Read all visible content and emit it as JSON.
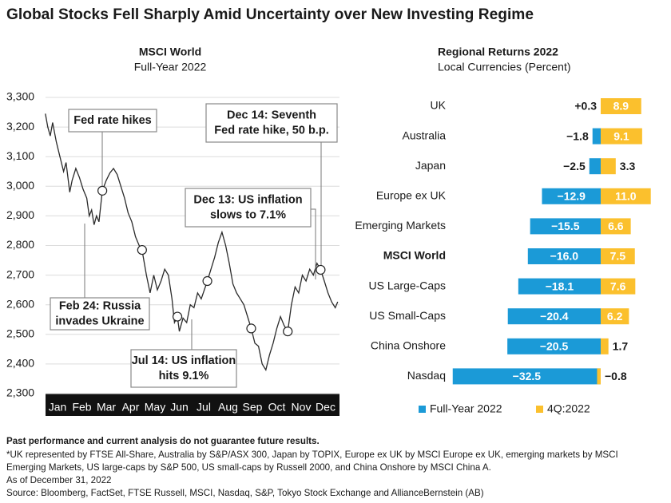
{
  "title": "Global Stocks Fell Sharply Amid Uncertainty over New Investing Regime",
  "chart_data": [
    {
      "type": "line",
      "title": "MSCI World",
      "subtitle": "Full-Year 2022",
      "xlim": [
        0,
        12
      ],
      "xticks": [
        {
          "value": 0.5,
          "label": "Jan"
        },
        {
          "value": 1.5,
          "label": "Feb"
        },
        {
          "value": 2.5,
          "label": "Mar"
        },
        {
          "value": 3.5,
          "label": "Apr"
        },
        {
          "value": 4.5,
          "label": "May"
        },
        {
          "value": 5.5,
          "label": "Jun"
        },
        {
          "value": 6.5,
          "label": "Jul"
        },
        {
          "value": 7.5,
          "label": "Aug"
        },
        {
          "value": 8.5,
          "label": "Sep"
        },
        {
          "value": 9.5,
          "label": "Oct"
        },
        {
          "value": 10.5,
          "label": "Nov"
        },
        {
          "value": 11.5,
          "label": "Dec"
        }
      ],
      "ylim": [
        2300,
        3300
      ],
      "yticks": [
        {
          "value": 2300,
          "label": "2,300"
        },
        {
          "value": 2400,
          "label": "2,400"
        },
        {
          "value": 2500,
          "label": "2,500"
        },
        {
          "value": 2600,
          "label": "2,600"
        },
        {
          "value": 2700,
          "label": "2,700"
        },
        {
          "value": 2800,
          "label": "2,800"
        },
        {
          "value": 2900,
          "label": "2,900"
        },
        {
          "value": 3000,
          "label": "3,000"
        },
        {
          "value": 3100,
          "label": "3,100"
        },
        {
          "value": 3200,
          "label": "3,200"
        },
        {
          "value": 3300,
          "label": "3,300"
        }
      ],
      "grid": true,
      "series": [
        {
          "color": "#2b2b2b",
          "x": [
            0.0,
            0.1,
            0.2,
            0.3,
            0.45,
            0.6,
            0.75,
            0.85,
            1.0,
            1.1,
            1.25,
            1.4,
            1.55,
            1.7,
            1.8,
            1.9,
            2.0,
            2.1,
            2.2,
            2.34,
            2.5,
            2.65,
            2.8,
            2.95,
            3.1,
            3.25,
            3.4,
            3.55,
            3.7,
            3.85,
            3.97,
            4.15,
            4.3,
            4.45,
            4.6,
            4.75,
            4.9,
            5.05,
            5.2,
            5.3,
            5.42,
            5.5,
            5.65,
            5.8,
            5.95,
            6.1,
            6.25,
            6.4,
            6.65,
            6.8,
            6.95,
            7.1,
            7.25,
            7.4,
            7.55,
            7.7,
            7.85,
            8.0,
            8.15,
            8.3,
            8.45,
            8.6,
            8.75,
            8.9,
            9.05,
            9.2,
            9.35,
            9.5,
            9.65,
            9.8,
            9.95,
            10.1,
            10.25,
            10.4,
            10.55,
            10.7,
            10.85,
            11.0,
            11.15,
            11.3,
            11.45,
            11.6,
            11.75,
            11.9,
            12.0
          ],
          "values": [
            3245,
            3200,
            3170,
            3215,
            3150,
            3100,
            3050,
            3080,
            2980,
            3020,
            3060,
            3030,
            2990,
            2960,
            2900,
            2920,
            2870,
            2900,
            2880,
            2985,
            3020,
            3045,
            3060,
            3040,
            3000,
            2960,
            2910,
            2880,
            2830,
            2800,
            2785,
            2700,
            2640,
            2700,
            2650,
            2680,
            2720,
            2700,
            2620,
            2540,
            2560,
            2510,
            2555,
            2540,
            2600,
            2590,
            2640,
            2620,
            2680,
            2720,
            2760,
            2810,
            2845,
            2800,
            2740,
            2670,
            2640,
            2620,
            2600,
            2560,
            2520,
            2470,
            2460,
            2400,
            2380,
            2430,
            2470,
            2520,
            2560,
            2530,
            2510,
            2600,
            2660,
            2640,
            2700,
            2680,
            2720,
            2700,
            2740,
            2718,
            2680,
            2640,
            2610,
            2590,
            2610
          ]
        }
      ],
      "markers": {
        "x": [
          2.34,
          3.97,
          5.42,
          6.65,
          8.45,
          9.95,
          11.3
        ],
        "values": [
          2985,
          2785,
          2560,
          2680,
          2520,
          2510,
          2718
        ]
      },
      "annotations": [
        [
          "Fed rate hikes"
        ],
        [
          "Dec 14: Seventh",
          "Fed rate hike, 50 b.p."
        ],
        [
          "Dec 13: US inflation",
          "slows to 7.1%"
        ],
        [
          "Feb 24: Russia",
          "invades Ukraine"
        ],
        [
          "Jul 14: US inflation",
          "hits 9.1%"
        ]
      ]
    },
    {
      "type": "hbar",
      "title": "Regional Returns 2022",
      "subtitle": "Local Currencies (Percent)",
      "categories": [
        "UK",
        "Australia",
        "Japan",
        "Europe ex UK",
        "Emerging Markets",
        "MSCI World",
        "US Large-Caps",
        "US Small-Caps",
        "China Onshore",
        "Nasdaq"
      ],
      "highlight_index": 5,
      "series": [
        {
          "name": "Full-Year 2022",
          "color": "#1b9ad7",
          "values": [
            0.3,
            -1.8,
            -2.5,
            -12.9,
            -15.5,
            -16.0,
            -18.1,
            -20.4,
            -20.5,
            -32.5
          ],
          "value_labels": [
            "+0.3",
            "−1.8",
            "−2.5",
            "−12.9",
            "−15.5",
            "−16.0",
            "−18.1",
            "−20.4",
            "−20.5",
            "−32.5"
          ]
        },
        {
          "name": "4Q:2022",
          "color": "#fbc02d",
          "values": [
            8.9,
            9.1,
            3.3,
            11.0,
            6.6,
            7.5,
            7.6,
            6.2,
            1.7,
            -0.8
          ],
          "value_labels": [
            "8.9",
            "9.1",
            "3.3",
            "11.0",
            "6.6",
            "7.5",
            "7.6",
            "6.2",
            "1.7",
            "−0.8"
          ]
        }
      ]
    }
  ],
  "footnotes": [
    "Past performance and current analysis do not guarantee future results.",
    "*UK represented by FTSE All-Share, Australia by S&P/ASX 300, Japan by TOPIX, Europe ex UK by MSCI Europe ex UK, emerging markets by MSCI",
    "Emerging Markets, US large-caps by S&P 500, US small-caps by Russell 2000, and China Onshore by MSCI China A.",
    "As of December 31, 2022",
    "Source: Bloomberg, FactSet, FTSE Russell, MSCI, Nasdaq, S&P, Tokyo Stock Exchange and AllianceBernstein (AB)"
  ]
}
